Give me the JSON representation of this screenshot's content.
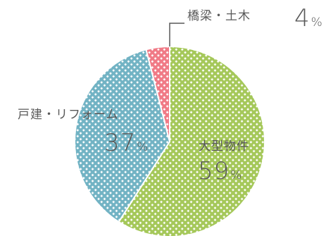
{
  "chart_data": {
    "type": "pie",
    "categories": [
      "大型物件",
      "戸建・リフォーム",
      "橋梁・土木"
    ],
    "values": [
      59,
      37,
      4
    ],
    "value_unit": "%",
    "colors": [
      "#a5c85a",
      "#72b3c4",
      "#f07a86"
    ],
    "pattern": "checkered hatch",
    "labels": {
      "large": {
        "name": "大型物件",
        "pct": "59",
        "unit": "%"
      },
      "house": {
        "name": "戸建・リフォーム",
        "pct": "37",
        "unit": "%"
      },
      "bridge": {
        "name": "橋梁・土木",
        "pct": "4",
        "unit": "%"
      }
    }
  }
}
